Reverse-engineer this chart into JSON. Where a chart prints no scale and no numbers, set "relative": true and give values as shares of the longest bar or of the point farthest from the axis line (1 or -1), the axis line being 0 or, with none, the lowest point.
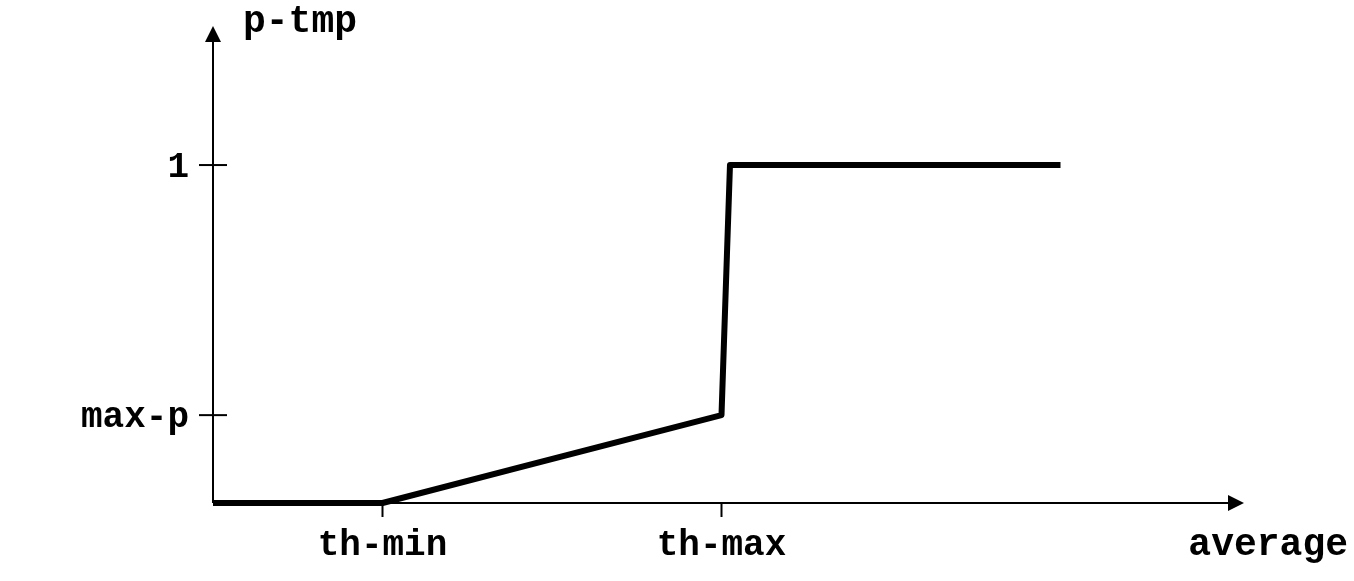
{
  "chart_data": {
    "type": "line",
    "xlabel": "average",
    "ylabel": "p-tmp",
    "relative": true,
    "categories": [
      null,
      null,
      null,
      null,
      null,
      null,
      null,
      null,
      null,
      null,
      null,
      null,
      null,
      null,
      null,
      null,
      null,
      null,
      null,
      null,
      "th-min",
      null,
      null,
      null,
      null,
      null,
      null,
      null,
      null,
      null,
      null,
      null,
      null,
      null,
      null,
      null,
      null,
      null,
      null,
      null,
      null,
      null,
      null,
      null,
      null,
      null,
      null,
      null,
      null,
      null,
      null,
      null,
      null,
      null,
      null,
      null,
      null,
      null,
      null,
      null,
      "th-max",
      null,
      null,
      null,
      null,
      null,
      null,
      null,
      null,
      null,
      null,
      null,
      null,
      null,
      null,
      null,
      null,
      null,
      null,
      null,
      null,
      null,
      null,
      null,
      null,
      null,
      null,
      null,
      null,
      null,
      null,
      null,
      null,
      null,
      null,
      null,
      null,
      null,
      null,
      null,
      null,
      null,
      null,
      null,
      null,
      null,
      null,
      null,
      null,
      null,
      null,
      null,
      null,
      null,
      null,
      null,
      null,
      null,
      null,
      null,
      null
    ],
    "series": [
      {
        "color": "#000000",
        "values": [
          0,
          null,
          null,
          null,
          null,
          null,
          null,
          null,
          null,
          null,
          null,
          null,
          null,
          null,
          null,
          null,
          null,
          null,
          null,
          null,
          0,
          null,
          null,
          null,
          null,
          null,
          null,
          null,
          null,
          null,
          null,
          null,
          null,
          null,
          null,
          null,
          null,
          null,
          null,
          null,
          null,
          null,
          null,
          null,
          null,
          null,
          null,
          null,
          null,
          null,
          null,
          null,
          null,
          null,
          null,
          null,
          null,
          null,
          null,
          null,
          0.26,
          1,
          null,
          null,
          null,
          null,
          null,
          null,
          null,
          null,
          null,
          null,
          null,
          null,
          null,
          null,
          null,
          null,
          null,
          null,
          null,
          null,
          null,
          null,
          null,
          null,
          null,
          null,
          null,
          null,
          null,
          null,
          null,
          null,
          null,
          null,
          null,
          null,
          null,
          null,
          1,
          null,
          null,
          null,
          null,
          null,
          null,
          null,
          null,
          null,
          null,
          null,
          null,
          null,
          null,
          null,
          null,
          null,
          null,
          null,
          null
        ]
      }
    ],
    "annotations": [
      "max-p",
      "1"
    ],
    "grid": false,
    "marker": "none",
    "line_style": "solid"
  }
}
